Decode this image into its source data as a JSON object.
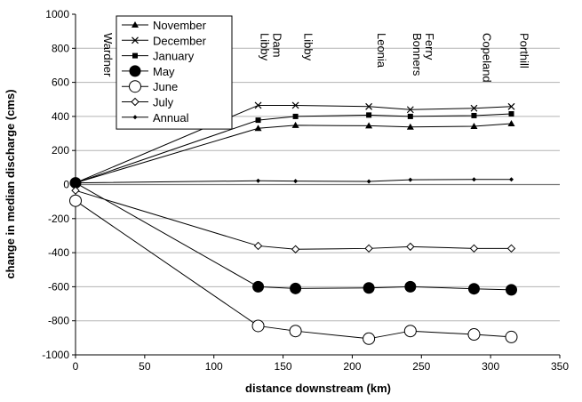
{
  "chart_data": {
    "type": "line",
    "title": "",
    "xlabel": "distance downstream (km)",
    "ylabel": "change in median discharge (cms)",
    "xlim": [
      0,
      350
    ],
    "ylim": [
      -1000,
      1000
    ],
    "xticks": [
      0,
      50,
      100,
      150,
      200,
      250,
      300,
      350
    ],
    "yticks": [
      -1000,
      -800,
      -600,
      -400,
      -200,
      0,
      200,
      400,
      600,
      800,
      1000
    ],
    "grid": "horizontal",
    "legend_position": "top-left",
    "x": [
      0,
      132,
      159,
      212,
      242,
      288,
      315
    ],
    "locations": [
      {
        "label": "Wardner",
        "x": 0
      },
      {
        "label": "Libby Dam",
        "x": 132
      },
      {
        "label": "Libby",
        "x": 159
      },
      {
        "label": "Leonia",
        "x": 212
      },
      {
        "label": "Bonners Ferry",
        "x": 242
      },
      {
        "label": "Copeland",
        "x": 288
      },
      {
        "label": "Porthill",
        "x": 315
      }
    ],
    "series": [
      {
        "name": "November",
        "marker": "triangle",
        "values": [
          10,
          330,
          348,
          345,
          338,
          342,
          358
        ]
      },
      {
        "name": "December",
        "marker": "x",
        "values": [
          10,
          465,
          465,
          458,
          440,
          448,
          458
        ]
      },
      {
        "name": "January",
        "marker": "square",
        "values": [
          10,
          378,
          400,
          408,
          400,
          405,
          415
        ]
      },
      {
        "name": "May",
        "marker": "circle-filled",
        "values": [
          10,
          -600,
          -610,
          -607,
          -600,
          -612,
          -618
        ]
      },
      {
        "name": "June",
        "marker": "circle-open",
        "values": [
          -95,
          -830,
          -860,
          -905,
          -860,
          -880,
          -895
        ]
      },
      {
        "name": "July",
        "marker": "diamond-open",
        "values": [
          -35,
          -360,
          -380,
          -375,
          -365,
          -375,
          -375
        ]
      },
      {
        "name": "Annual",
        "marker": "diamond-filled",
        "values": [
          10,
          22,
          20,
          18,
          28,
          30,
          30
        ]
      }
    ]
  }
}
